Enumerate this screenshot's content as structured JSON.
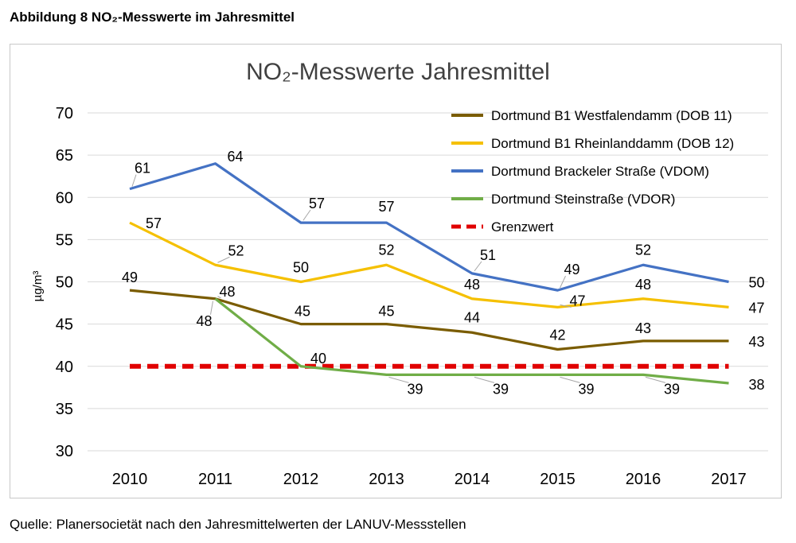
{
  "figure_caption": "Abbildung 8 NO₂-Messwerte im Jahresmittel",
  "source_note": "Quelle: Planersocietät nach den Jahresmittelwerten der LANUV-Messstellen",
  "colors": {
    "westfalendamm": "#7a5c00",
    "rheinlanddamm": "#f5c000",
    "brackeler": "#4472c4",
    "steinstrasse": "#70ad47",
    "grenzwert": "#e00000",
    "grid": "#d9d9d9"
  },
  "chart_data": {
    "type": "line",
    "title": "NO₂-Messwerte Jahresmittel",
    "xlabel": "",
    "ylabel": "µg/m³",
    "x": [
      "2010",
      "2011",
      "2012",
      "2013",
      "2014",
      "2015",
      "2016",
      "2017"
    ],
    "ylim": [
      30,
      70
    ],
    "yticks": [
      "30",
      "35",
      "40",
      "45",
      "50",
      "55",
      "60",
      "65",
      "70"
    ],
    "grid": true,
    "legend_position": "top-right",
    "series": [
      {
        "name": "Dortmund B1 Westfalendamm (DOB 11)",
        "values": [
          49,
          48,
          45,
          45,
          44,
          42,
          43,
          43
        ],
        "color_key": "westfalendamm",
        "style": "solid"
      },
      {
        "name": "Dortmund B1 Rheinlanddamm (DOB 12)",
        "values": [
          57,
          52,
          50,
          52,
          48,
          47,
          48,
          47
        ],
        "color_key": "rheinlanddamm",
        "style": "solid"
      },
      {
        "name": "Dortmund Brackeler Straße (VDOM)",
        "values": [
          61,
          64,
          57,
          57,
          51,
          49,
          52,
          50
        ],
        "color_key": "brackeler",
        "style": "solid"
      },
      {
        "name": "Dortmund Steinstraße (VDOR)",
        "values": [
          null,
          48,
          40,
          39,
          39,
          39,
          39,
          38
        ],
        "color_key": "steinstrasse",
        "style": "solid"
      },
      {
        "name": "Grenzwert",
        "values": [
          40,
          40,
          40,
          40,
          40,
          40,
          40,
          40
        ],
        "color_key": "grenzwert",
        "style": "dashed"
      }
    ]
  }
}
